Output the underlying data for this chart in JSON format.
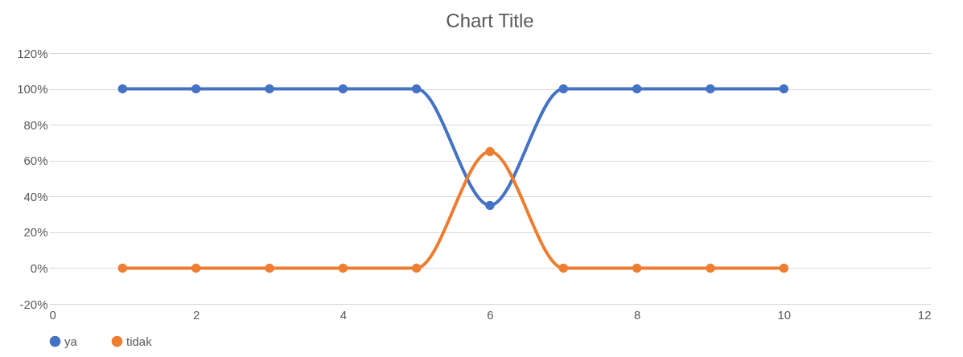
{
  "chart_data": {
    "type": "line",
    "title": "Chart Title",
    "x": [
      1,
      2,
      3,
      4,
      5,
      6,
      7,
      8,
      9,
      10
    ],
    "series": [
      {
        "name": "ya",
        "color": "#4472c4",
        "values": [
          100,
          100,
          100,
          100,
          100,
          35,
          100,
          100,
          100,
          100
        ]
      },
      {
        "name": "tidak",
        "color": "#ed7d31",
        "values": [
          0,
          0,
          0,
          0,
          0,
          65,
          0,
          0,
          0,
          0
        ]
      }
    ],
    "xlim": [
      0,
      12
    ],
    "xticks": [
      0,
      2,
      4,
      6,
      8,
      10,
      12
    ],
    "ylim": [
      -20,
      120
    ],
    "yticks": [
      {
        "value": -20,
        "label": "-20%"
      },
      {
        "value": 0,
        "label": "0%"
      },
      {
        "value": 20,
        "label": "20%"
      },
      {
        "value": 40,
        "label": "40%"
      },
      {
        "value": 60,
        "label": "60%"
      },
      {
        "value": 80,
        "label": "80%"
      },
      {
        "value": 100,
        "label": "100%"
      },
      {
        "value": 120,
        "label": "120%"
      }
    ],
    "grid": "y",
    "legend": "bottom",
    "marker": "circle",
    "line_style": "solid"
  }
}
